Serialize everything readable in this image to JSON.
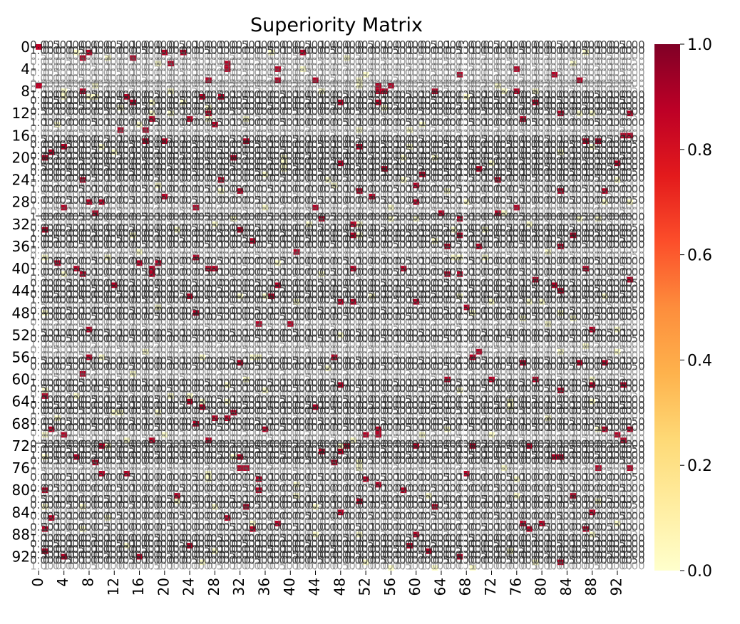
{
  "chart_data": {
    "type": "heatmap",
    "title": "Superiority Matrix",
    "xlabel": "",
    "ylabel": "",
    "rows": 95,
    "cols": 95,
    "x_tick_labels": [
      "0",
      "4",
      "8",
      "12",
      "16",
      "20",
      "24",
      "28",
      "32",
      "36",
      "40",
      "44",
      "48",
      "52",
      "56",
      "60",
      "64",
      "68",
      "72",
      "76",
      "80",
      "84",
      "88",
      "92"
    ],
    "y_tick_labels": [
      "0",
      "4",
      "8",
      "12",
      "16",
      "20",
      "24",
      "28",
      "32",
      "36",
      "40",
      "44",
      "48",
      "52",
      "56",
      "60",
      "64",
      "68",
      "72",
      "76",
      "80",
      "84",
      "88",
      "92"
    ],
    "colorbar": {
      "min": 0.0,
      "max": 1.0,
      "tick_labels": [
        "0.0",
        "0.2",
        "0.4",
        "0.6",
        "0.8",
        "1.0"
      ],
      "colormap": "YlOrRd",
      "stops": [
        "#ffffcc",
        "#ffeda0",
        "#fed976",
        "#feb24c",
        "#fd8d3c",
        "#fc4e2a",
        "#e31a1c",
        "#bd0026",
        "#800026"
      ]
    },
    "annotations": {
      "shown": true,
      "format": "0.00",
      "color": "#262626"
    },
    "values": [],
    "note_values": "Cell values are shown only as overlapping annotation text (mostly 0.00 / 1.00 pattern); individual values are not legible."
  }
}
